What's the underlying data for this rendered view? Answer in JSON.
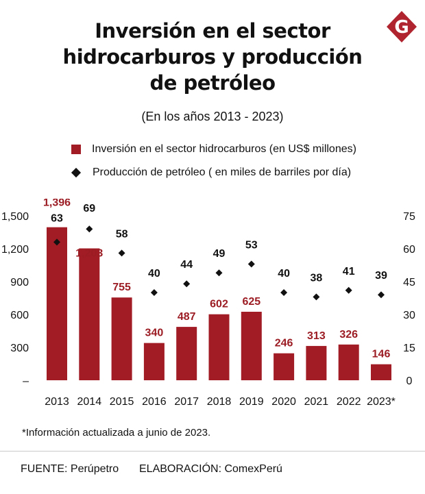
{
  "header": {
    "title_lines": [
      "Inversión en el sector",
      "hidrocarburos y producción",
      "de petróleo"
    ],
    "subtitle": "(En los años 2013 - 2023)",
    "logo_letter": "G"
  },
  "legend": {
    "investment": "Inversión en el sector hidrocarburos (en US$ millones)",
    "production": "Producción de petróleo ( en miles de barriles por día)"
  },
  "colors": {
    "bar": "#a21c26",
    "bar_label": "#9c1c24",
    "marker": "#111111",
    "logo": "#b0242f"
  },
  "chart_data": {
    "type": "bar",
    "categories": [
      "2013",
      "2014",
      "2015",
      "2016",
      "2017",
      "2018",
      "2019",
      "2020",
      "2021",
      "2022",
      "2023*"
    ],
    "series": [
      {
        "name": "Inversión en el sector hidrocarburos (en US$ millones)",
        "type": "bar",
        "axis": "left",
        "values": [
          1396,
          1203,
          755,
          340,
          487,
          602,
          625,
          246,
          313,
          326,
          146
        ],
        "labels": [
          "1,396",
          "1,203",
          "755",
          "340",
          "487",
          "602",
          "625",
          "246",
          "313",
          "326",
          "146"
        ]
      },
      {
        "name": "Producción de petróleo ( en miles de barriles por día)",
        "type": "scatter",
        "axis": "right",
        "values": [
          63,
          69,
          58,
          40,
          44,
          49,
          53,
          40,
          38,
          41,
          39
        ]
      }
    ],
    "y_left": {
      "range": [
        0,
        1500
      ],
      "ticks": [
        0,
        300,
        600,
        900,
        1200,
        1500
      ],
      "tick_labels": [
        "–",
        "300",
        "600",
        "900",
        "1,200",
        "1,500"
      ]
    },
    "y_right": {
      "range": [
        0,
        75
      ],
      "ticks": [
        0,
        15,
        30,
        45,
        60,
        75
      ],
      "tick_labels": [
        "0",
        "15",
        "30",
        "45",
        "60",
        "75"
      ]
    },
    "grid": false,
    "legend_position": "top"
  },
  "footer": {
    "note": "*Información actualizada a junio de 2023.",
    "source": "FUENTE: Perúpetro",
    "credit": "ELABORACIÓN: ComexPerú"
  }
}
